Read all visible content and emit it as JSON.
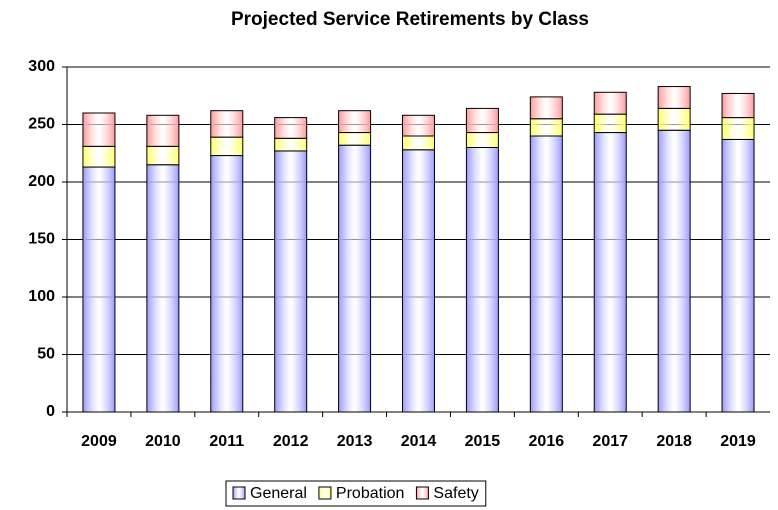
{
  "chart_data": {
    "type": "stacked_bar",
    "title": "Projected Service Retirements by Class",
    "categories": [
      "2009",
      "2010",
      "2011",
      "2012",
      "2013",
      "2014",
      "2015",
      "2016",
      "2017",
      "2018",
      "2019"
    ],
    "series": [
      {
        "name": "General",
        "color": "#9999ff",
        "values": [
          213,
          215,
          223,
          227,
          232,
          228,
          230,
          240,
          243,
          245,
          237
        ]
      },
      {
        "name": "Probation",
        "color": "#ffff66",
        "values": [
          18,
          16,
          16,
          11,
          11,
          12,
          13,
          15,
          16,
          19,
          19
        ]
      },
      {
        "name": "Safety",
        "color": "#ff9999",
        "values": [
          29,
          27,
          23,
          18,
          19,
          18,
          21,
          19,
          19,
          19,
          21
        ]
      }
    ],
    "ylim": [
      0,
      300
    ],
    "yticks": [
      0,
      50,
      100,
      150,
      200,
      250,
      300
    ],
    "grid": true,
    "legend": "bottom"
  }
}
